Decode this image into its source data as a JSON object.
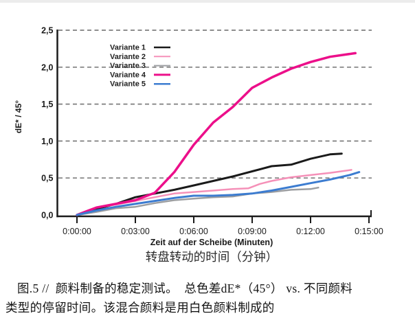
{
  "figure": {
    "caption_line1": "图.5 //  颜料制备的稳定测试。  总色差dE*（45°） vs. 不同颜料",
    "caption_line2": "类型的停留时间。该混合颜料是用白色颜料制成的"
  },
  "chart_data": {
    "type": "line",
    "title": "",
    "xlabel": "Zeit auf der Scheibe (Minuten)",
    "xlabel_zh": "转盘转动的时间（分钟）",
    "ylabel": "dE* / 45°",
    "x_unit": "minutes",
    "xlim": [
      0,
      15
    ],
    "ylim": [
      0,
      2.5
    ],
    "x_ticks": [
      0,
      3,
      6,
      9,
      12,
      15
    ],
    "x_tick_labels": [
      "0:00:00",
      "0:03:00",
      "0:06:00",
      "0:09:00",
      "0:12:00",
      "0:15:00"
    ],
    "y_ticks": [
      0,
      0.5,
      1.0,
      1.5,
      2.0,
      2.5
    ],
    "y_tick_labels": [
      "0,0",
      "0,5",
      "1,0",
      "1,5",
      "2,0",
      "2,5"
    ],
    "grid": "horizontal-dashed",
    "grid_color": "#7d7d7d",
    "axis_color": "#1a1a1a",
    "legend_position": "upper-left-inside",
    "series": [
      {
        "name": "Variante 1",
        "color": "#1a1a1a",
        "width": 3,
        "points": [
          [
            0,
            0
          ],
          [
            1,
            0.08
          ],
          [
            2,
            0.15
          ],
          [
            3,
            0.24
          ],
          [
            4,
            0.29
          ],
          [
            5,
            0.34
          ],
          [
            6,
            0.4
          ],
          [
            7,
            0.46
          ],
          [
            8,
            0.52
          ],
          [
            9,
            0.59
          ],
          [
            10,
            0.66
          ],
          [
            11,
            0.68
          ],
          [
            12,
            0.76
          ],
          [
            13,
            0.82
          ],
          [
            13.6,
            0.83
          ]
        ]
      },
      {
        "name": "Variante 2",
        "color": "#f590b8",
        "width": 2.5,
        "points": [
          [
            0,
            0
          ],
          [
            1,
            0.1
          ],
          [
            2,
            0.14
          ],
          [
            3,
            0.19
          ],
          [
            4,
            0.24
          ],
          [
            5,
            0.29
          ],
          [
            6,
            0.31
          ],
          [
            7,
            0.33
          ],
          [
            8,
            0.35
          ],
          [
            8.8,
            0.36
          ],
          [
            9.4,
            0.42
          ],
          [
            10,
            0.46
          ],
          [
            11,
            0.51
          ],
          [
            12,
            0.54
          ],
          [
            13,
            0.57
          ],
          [
            14.1,
            0.61
          ]
        ]
      },
      {
        "name": "Variante 3",
        "color": "#9c9ea1",
        "width": 2.5,
        "points": [
          [
            0,
            0
          ],
          [
            1,
            0.04
          ],
          [
            2,
            0.09
          ],
          [
            3,
            0.11
          ],
          [
            4,
            0.16
          ],
          [
            5,
            0.2
          ],
          [
            6,
            0.22
          ],
          [
            7,
            0.24
          ],
          [
            8,
            0.25
          ],
          [
            9,
            0.29
          ],
          [
            10,
            0.31
          ],
          [
            11,
            0.34
          ],
          [
            12,
            0.35
          ],
          [
            12.4,
            0.37
          ]
        ]
      },
      {
        "name": "Variante 4",
        "color": "#ec0f8a",
        "width": 3.5,
        "points": [
          [
            0,
            0
          ],
          [
            1,
            0.1
          ],
          [
            2,
            0.15
          ],
          [
            3,
            0.2
          ],
          [
            4,
            0.3
          ],
          [
            5,
            0.58
          ],
          [
            6,
            0.95
          ],
          [
            7,
            1.25
          ],
          [
            8,
            1.46
          ],
          [
            9,
            1.72
          ],
          [
            10,
            1.86
          ],
          [
            11,
            1.98
          ],
          [
            12,
            2.07
          ],
          [
            13,
            2.14
          ],
          [
            14.3,
            2.19
          ]
        ]
      },
      {
        "name": "Variante 5",
        "color": "#3c7cd0",
        "width": 3,
        "points": [
          [
            0,
            0
          ],
          [
            1,
            0.06
          ],
          [
            2,
            0.11
          ],
          [
            3,
            0.15
          ],
          [
            4,
            0.19
          ],
          [
            5,
            0.23
          ],
          [
            6,
            0.26
          ],
          [
            7,
            0.26
          ],
          [
            8,
            0.27
          ],
          [
            9,
            0.29
          ],
          [
            10,
            0.33
          ],
          [
            11,
            0.38
          ],
          [
            12,
            0.43
          ],
          [
            13,
            0.48
          ],
          [
            14,
            0.54
          ],
          [
            14.5,
            0.58
          ]
        ]
      }
    ]
  }
}
